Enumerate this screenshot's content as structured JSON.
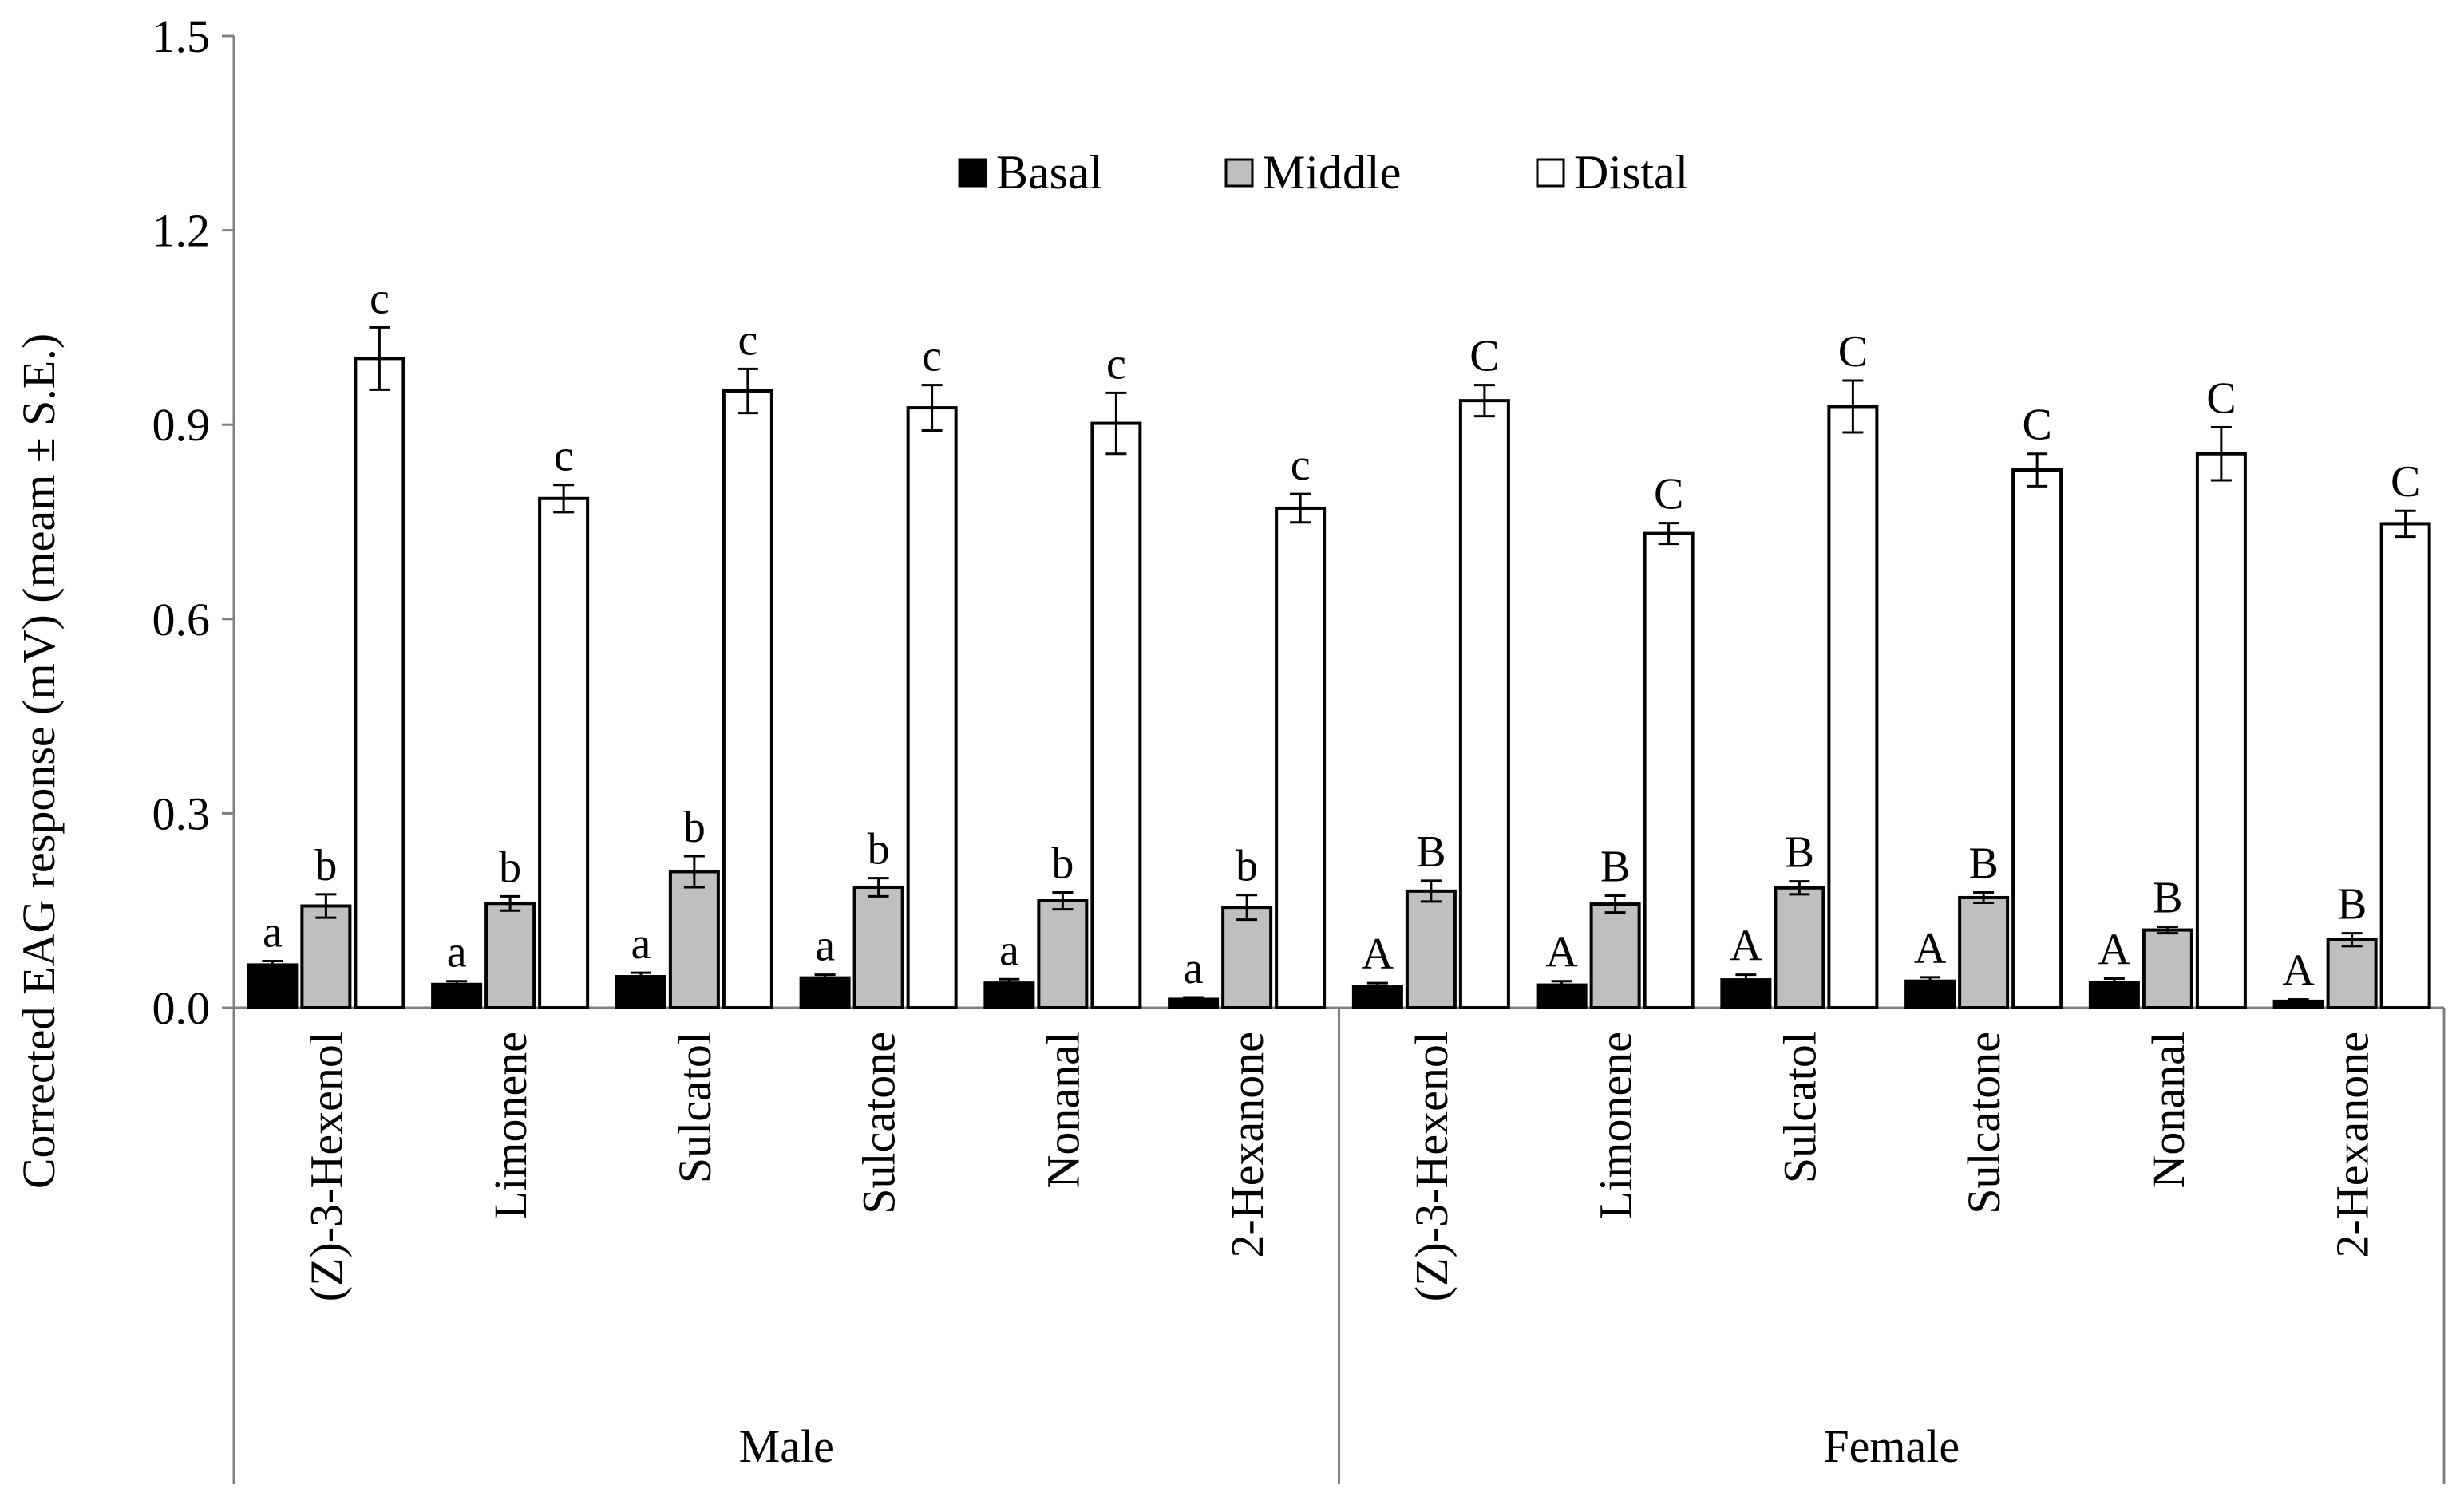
{
  "chart_data": {
    "type": "bar",
    "title": "",
    "ylabel": "Corrected EAG response (mV) (meam ± S.E.)",
    "xlabel": "",
    "ylim": [
      0,
      1.5
    ],
    "yticks": [
      "0.0",
      "0.3",
      "0.6",
      "0.9",
      "1.2",
      "1.5"
    ],
    "yticks_values": [
      0,
      0.3,
      0.6,
      0.9,
      1.2,
      1.5
    ],
    "legend": {
      "placement": "top-center",
      "entries": [
        "Basal",
        "Middle",
        "Distal"
      ]
    },
    "colors": {
      "Basal": "#000000",
      "Middle": "#bfbfbf",
      "Distal": "#ffffff"
    },
    "groups": [
      {
        "name": "Male",
        "categories": [
          "(Z)-3-Hexenol",
          "Limonene",
          "Sulcatol",
          "Sulcatone",
          "Nonanal",
          "2-Hexanone"
        ],
        "series": [
          {
            "name": "Basal",
            "values": [
              0.066,
              0.036,
              0.048,
              0.046,
              0.038,
              0.013
            ],
            "errors": [
              0.006,
              0.005,
              0.006,
              0.005,
              0.006,
              0.003
            ],
            "labels": [
              "a",
              "a",
              "a",
              "a",
              "a",
              "a"
            ]
          },
          {
            "name": "Middle",
            "values": [
              0.157,
              0.161,
              0.21,
              0.186,
              0.165,
              0.155
            ],
            "errors": [
              0.018,
              0.011,
              0.024,
              0.014,
              0.013,
              0.019
            ],
            "labels": [
              "b",
              "b",
              "b",
              "b",
              "b",
              "b"
            ]
          },
          {
            "name": "Distal",
            "values": [
              1.002,
              0.786,
              0.952,
              0.926,
              0.902,
              0.771
            ],
            "errors": [
              0.048,
              0.021,
              0.034,
              0.035,
              0.047,
              0.022
            ],
            "labels": [
              "c",
              "c",
              "c",
              "c",
              "c",
              "c"
            ]
          }
        ]
      },
      {
        "name": "Female",
        "categories": [
          "(Z)-3-Hexenol",
          "Limonene",
          "Sulcatol",
          "Sulcatone",
          "Nonanal",
          "2-Hexanone"
        ],
        "series": [
          {
            "name": "Basal",
            "values": [
              0.032,
              0.035,
              0.043,
              0.041,
              0.039,
              0.01
            ],
            "errors": [
              0.006,
              0.006,
              0.008,
              0.006,
              0.006,
              0.003
            ],
            "labels": [
              "A",
              "A",
              "A",
              "A",
              "A",
              "A"
            ]
          },
          {
            "name": "Middle",
            "values": [
              0.18,
              0.16,
              0.185,
              0.17,
              0.12,
              0.105
            ],
            "errors": [
              0.016,
              0.013,
              0.01,
              0.008,
              0.005,
              0.01
            ],
            "labels": [
              "B",
              "B",
              "B",
              "B",
              "B",
              "B"
            ]
          },
          {
            "name": "Distal",
            "values": [
              0.937,
              0.732,
              0.928,
              0.83,
              0.855,
              0.747
            ],
            "errors": [
              0.024,
              0.016,
              0.04,
              0.025,
              0.041,
              0.02
            ],
            "labels": [
              "C",
              "C",
              "C",
              "C",
              "C",
              "C"
            ]
          }
        ]
      }
    ]
  }
}
